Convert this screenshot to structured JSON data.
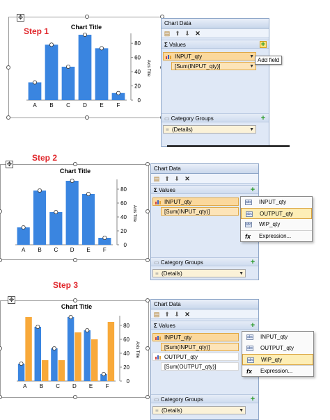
{
  "steps": [
    {
      "label": "Step 1"
    },
    {
      "label": "Step 2"
    },
    {
      "label": "Step 3"
    }
  ],
  "pane": {
    "title": "Chart Data",
    "values_header": "Values",
    "category_header": "Category Groups",
    "details": "(Details)",
    "add_field_tooltip": "Add field"
  },
  "fields": {
    "input_qty": "INPUT_qty",
    "sum_input_qty": "[Sum(INPUT_qty)]",
    "output_qty": "OUTPUT_qty",
    "sum_output_qty": "[Sum(OUTPUT_qty)]"
  },
  "menu": {
    "items": [
      "INPUT_qty",
      "OUTPUT_qty",
      "WIP_qty",
      "Expression..."
    ]
  },
  "colors": {
    "blue": "#3a85e0",
    "orange": "#f8a93a",
    "step_red": "#e0262b"
  },
  "chart_data": [
    {
      "type": "bar",
      "title": "Chart Title",
      "ylabel": "Axis Title",
      "categories": [
        "A",
        "B",
        "C",
        "D",
        "E",
        "F"
      ],
      "series": [
        {
          "values": [
            25,
            78,
            47,
            92,
            73,
            10
          ]
        }
      ],
      "ylim": [
        0,
        90
      ],
      "yticks": [
        0,
        20,
        40,
        60,
        80
      ],
      "legend": "none"
    },
    {
      "type": "bar",
      "title": "Chart Title",
      "ylabel": "Axis Title",
      "categories": [
        "A",
        "B",
        "C",
        "D",
        "E",
        "F"
      ],
      "series": [
        {
          "values": [
            25,
            78,
            47,
            92,
            73,
            10
          ]
        }
      ],
      "ylim": [
        0,
        90
      ],
      "yticks": [
        0,
        20,
        40,
        60,
        80
      ],
      "legend": "none"
    },
    {
      "type": "bar",
      "title": "Chart Title",
      "ylabel": "Axis Title",
      "categories": [
        "A",
        "B",
        "C",
        "D",
        "E",
        "F"
      ],
      "series": [
        {
          "values": [
            25,
            78,
            47,
            92,
            73,
            10
          ]
        },
        {
          "values": [
            92,
            30,
            30,
            70,
            60,
            85
          ]
        }
      ],
      "ylim": [
        0,
        90
      ],
      "yticks": [
        0,
        20,
        40,
        60,
        80
      ],
      "legend": "none"
    }
  ]
}
